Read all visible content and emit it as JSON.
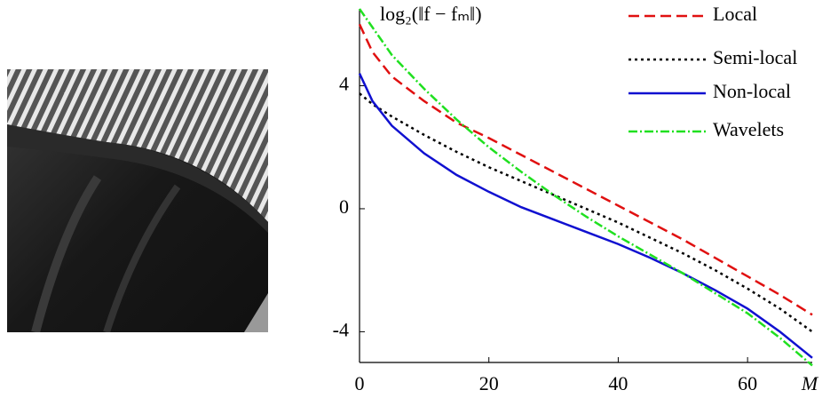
{
  "chart_data": {
    "type": "line",
    "y_label": "log₂(‖f − fₘ‖)",
    "x_label": "M",
    "x": [
      0,
      2,
      5,
      10,
      15,
      20,
      25,
      30,
      35,
      40,
      45,
      50,
      55,
      60,
      65,
      70
    ],
    "series": [
      {
        "name": "Local",
        "color": "#e01010",
        "linestyle": "dashed",
        "values": [
          6.0,
          5.1,
          4.3,
          3.5,
          2.8,
          2.3,
          1.75,
          1.2,
          0.65,
          0.1,
          -0.45,
          -1.0,
          -1.6,
          -2.2,
          -2.8,
          -3.45
        ]
      },
      {
        "name": "Semi-local",
        "color": "#000000",
        "linestyle": "dotted",
        "values": [
          3.75,
          3.4,
          3.0,
          2.4,
          1.85,
          1.35,
          0.9,
          0.45,
          0.0,
          -0.45,
          -0.95,
          -1.45,
          -2.0,
          -2.6,
          -3.25,
          -4.0
        ]
      },
      {
        "name": "Non-local",
        "color": "#1010d0",
        "linestyle": "solid",
        "values": [
          4.4,
          3.5,
          2.7,
          1.8,
          1.1,
          0.55,
          0.05,
          -0.35,
          -0.75,
          -1.15,
          -1.6,
          -2.1,
          -2.65,
          -3.25,
          -4.0,
          -4.85
        ]
      },
      {
        "name": "Wavelets",
        "color": "#20e020",
        "linestyle": "dashdot",
        "values": [
          6.5,
          5.9,
          5.0,
          3.9,
          2.9,
          2.0,
          1.2,
          0.45,
          -0.25,
          -0.9,
          -1.5,
          -2.1,
          -2.75,
          -3.4,
          -4.2,
          -5.1
        ]
      }
    ],
    "xlim": [
      0,
      70
    ],
    "ylim": [
      -5,
      6.5
    ],
    "xticks": [
      0,
      20,
      40,
      60
    ],
    "yticks": [
      -4,
      0,
      4
    ],
    "legend": "upper right"
  }
}
